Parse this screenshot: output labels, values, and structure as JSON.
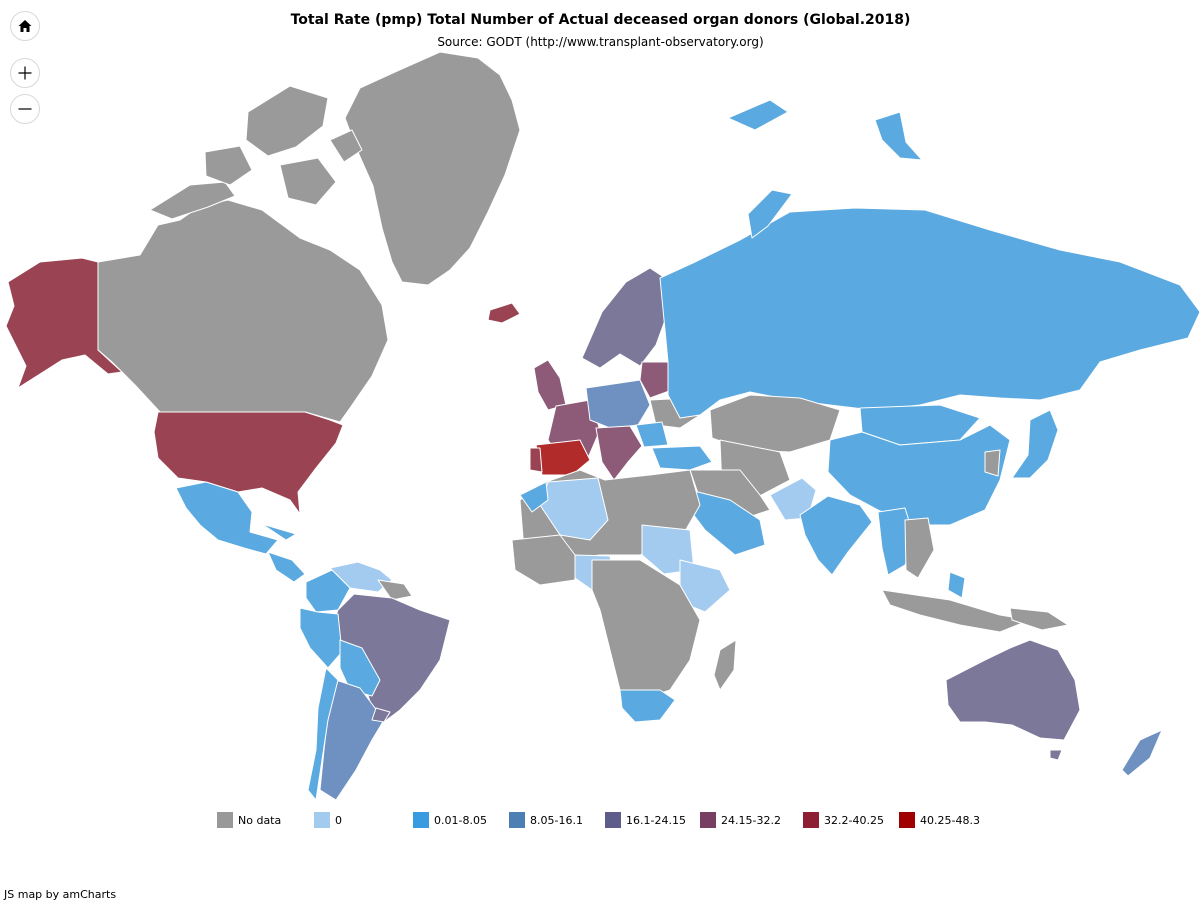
{
  "title": "Total Rate (pmp) Total Number of Actual deceased organ donors (Global.2018)",
  "subtitle": "Source: GODT (http://www.transplant-observatory.org)",
  "controls": {
    "home_icon": "home-icon",
    "zoom_in_icon": "plus-icon",
    "zoom_out_icon": "minus-icon"
  },
  "legend": [
    {
      "label": "No data",
      "color": "#999999"
    },
    {
      "label": "0",
      "color": "#a3cbef"
    },
    {
      "label": "0.01-8.05",
      "color": "#3a9ce0"
    },
    {
      "label": "8.05-16.1",
      "color": "#4d7fb5"
    },
    {
      "label": "16.1-24.15",
      "color": "#5e5c8a"
    },
    {
      "label": "24.15-32.2",
      "color": "#783f62"
    },
    {
      "label": "32.2-40.25",
      "color": "#8e1f33"
    },
    {
      "label": "40.25-48.3",
      "color": "#a10000"
    }
  ],
  "map_colors": {
    "no_data": "#9a9a9a",
    "zero": "#a3cbef",
    "c1": "#5aa9e0",
    "c2": "#6f91c2",
    "c3": "#7b7899",
    "c4": "#8d5a78",
    "c5": "#9a4352",
    "c6": "#b12b2b"
  },
  "credit": "JS map by amCharts"
}
